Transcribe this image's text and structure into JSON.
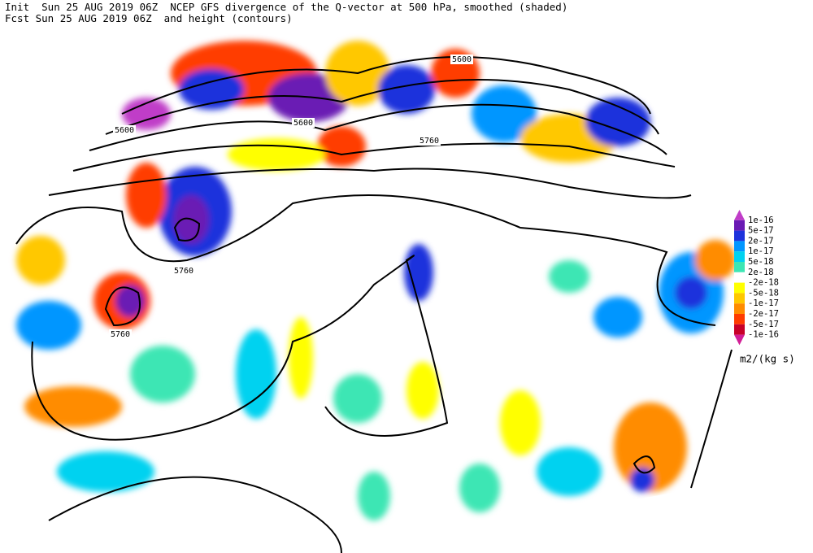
{
  "header": {
    "line1": "Init  Sun 25 AUG 2019 06Z  NCEP GFS divergence of the Q-vector at 500 hPa, smoothed (shaded)",
    "line2": "Fcst Sun 25 AUG 2019 06Z  and height (contours)"
  },
  "contour_labels": [
    5600,
    5600,
    5600,
    5760,
    5760,
    5760
  ],
  "legend": {
    "labels": [
      "1e-16",
      "5e-17",
      "2e-17",
      "1e-17",
      "5e-18",
      "2e-18",
      "-2e-18",
      "-5e-18",
      "-1e-17",
      "-2e-17",
      "-5e-17",
      "-1e-16"
    ],
    "colors": [
      "#c03cc8",
      "#6a1ab4",
      "#1e32dc",
      "#0096ff",
      "#00d2f0",
      "#3ce6b4",
      "#ffffff",
      "#ffff00",
      "#ffc800",
      "#ff8c00",
      "#ff3c00",
      "#c80028",
      "#d21e96"
    ],
    "unit": "m2/(kg s)"
  }
}
